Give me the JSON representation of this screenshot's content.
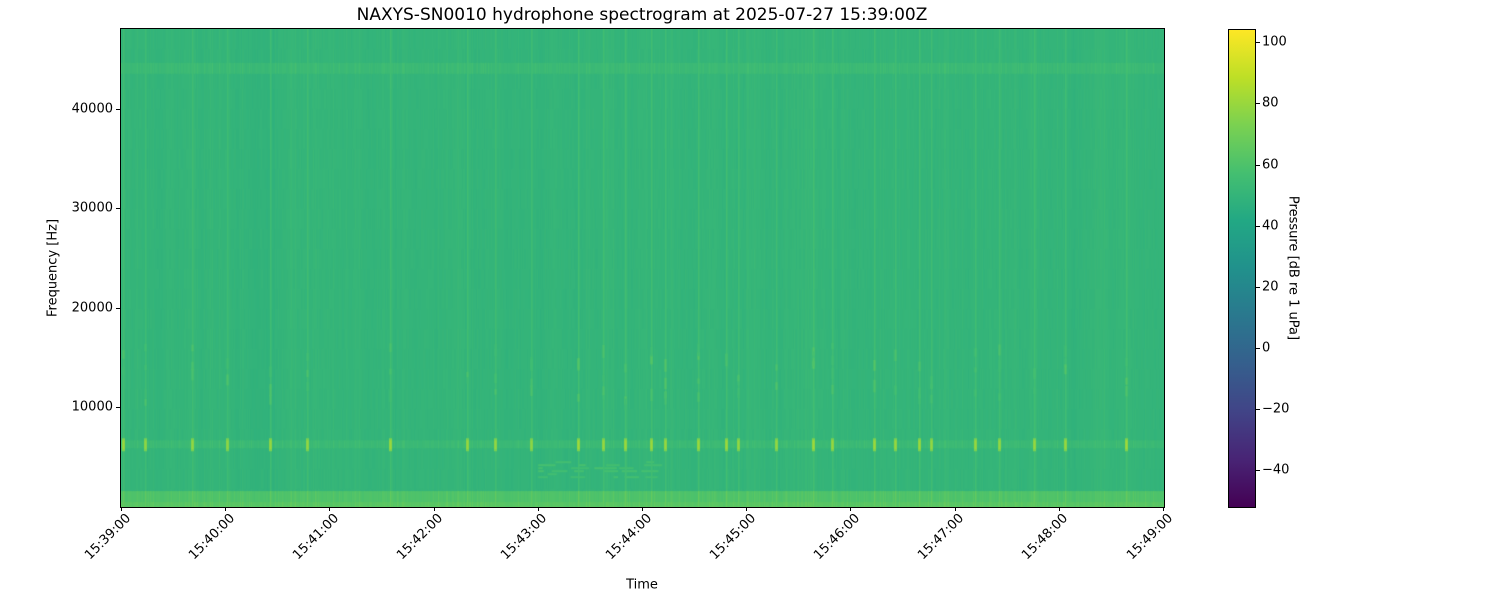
{
  "chart_data": {
    "type": "heatmap",
    "title": "NAXYS-SN0010 hydrophone spectrogram at 2025-07-27 15:39:00Z",
    "xlabel": "Time",
    "ylabel": "Frequency [Hz]",
    "x_tick_labels": [
      "15:39:00",
      "15:40:00",
      "15:41:00",
      "15:42:00",
      "15:43:00",
      "15:44:00",
      "15:45:00",
      "15:46:00",
      "15:47:00",
      "15:48:00",
      "15:49:00"
    ],
    "x_range_seconds": [
      0,
      600
    ],
    "y_ticks_hz": [
      10000,
      20000,
      30000,
      40000
    ],
    "y_range_hz": [
      0,
      48000
    ],
    "grid": false,
    "colorbar": {
      "label": "Pressure [dB re 1 uPa]",
      "ticks_db": [
        100,
        80,
        60,
        40,
        20,
        0,
        -20,
        -40
      ],
      "vmin_db": -52,
      "vmax_db": 104,
      "colormap": "viridis",
      "colormap_stops": [
        "#440154",
        "#482475",
        "#414487",
        "#355f8d",
        "#2a788e",
        "#21918c",
        "#22a884",
        "#44bf70",
        "#7ad151",
        "#bddf26",
        "#fde725"
      ]
    },
    "field": {
      "background_db": 50,
      "bands": [
        {
          "name": "low-frequency-noise-band",
          "f_hz": [
            0,
            1600
          ],
          "level_db": 60
        },
        {
          "name": "very-low-frequency-band",
          "f_hz": [
            0,
            500
          ],
          "level_db": 63
        },
        {
          "name": "faint-tonal-line",
          "f_hz": [
            43500,
            44600
          ],
          "level_db": 53
        },
        {
          "name": "click-band",
          "f_hz": [
            5900,
            6700
          ],
          "level_db": 53
        }
      ],
      "diffuse_patch": {
        "t_s": [
          240,
          310
        ],
        "f_hz": [
          2800,
          4600
        ],
        "level_db": 57
      },
      "transient_click_f_hz": 6300,
      "transient_mid_band_f_hz": [
        10000,
        16500
      ],
      "transient_peak_db": 82,
      "transients": [
        {
          "t_s": 1,
          "strength": 0.9
        },
        {
          "t_s": 14,
          "strength": 0.6
        },
        {
          "t_s": 41,
          "strength": 0.7
        },
        {
          "t_s": 61,
          "strength": 0.6
        },
        {
          "t_s": 86,
          "strength": 0.8
        },
        {
          "t_s": 107,
          "strength": 0.7
        },
        {
          "t_s": 155,
          "strength": 0.9
        },
        {
          "t_s": 199,
          "strength": 0.8
        },
        {
          "t_s": 215,
          "strength": 0.7
        },
        {
          "t_s": 236,
          "strength": 0.6
        },
        {
          "t_s": 263,
          "strength": 1.0
        },
        {
          "t_s": 277,
          "strength": 0.8
        },
        {
          "t_s": 290,
          "strength": 0.9
        },
        {
          "t_s": 305,
          "strength": 0.9
        },
        {
          "t_s": 313,
          "strength": 0.8
        },
        {
          "t_s": 332,
          "strength": 0.9
        },
        {
          "t_s": 348,
          "strength": 0.9
        },
        {
          "t_s": 355,
          "strength": 0.7
        },
        {
          "t_s": 377,
          "strength": 0.7
        },
        {
          "t_s": 398,
          "strength": 1.0
        },
        {
          "t_s": 409,
          "strength": 0.8
        },
        {
          "t_s": 433,
          "strength": 0.9
        },
        {
          "t_s": 445,
          "strength": 0.8
        },
        {
          "t_s": 459,
          "strength": 0.9
        },
        {
          "t_s": 466,
          "strength": 0.7
        },
        {
          "t_s": 491,
          "strength": 0.8
        },
        {
          "t_s": 505,
          "strength": 0.7
        },
        {
          "t_s": 525,
          "strength": 0.8
        },
        {
          "t_s": 543,
          "strength": 0.8
        },
        {
          "t_s": 578,
          "strength": 1.0
        }
      ]
    }
  }
}
